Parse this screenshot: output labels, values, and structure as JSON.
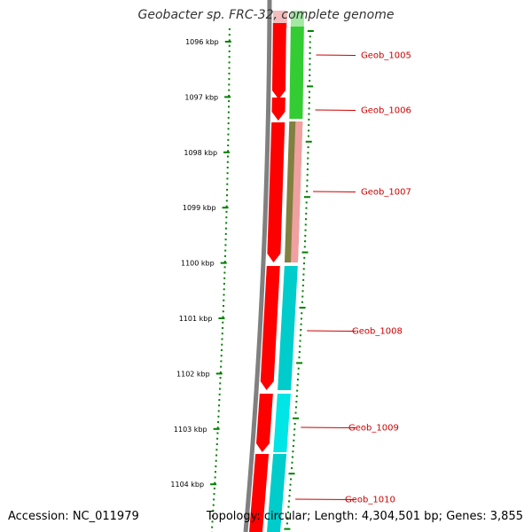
{
  "header": {
    "title": "Geobacter sp. FRC-32, complete genome"
  },
  "ruler": {
    "tick_labels": [
      "1096 kbp",
      "1097 kbp",
      "1098 kbp",
      "1099 kbp",
      "1100 kbp",
      "1101 kbp",
      "1102 kbp",
      "1103 kbp",
      "1104 kbp"
    ]
  },
  "genes": [
    {
      "label": "Geob_1005",
      "color": "#cc0000"
    },
    {
      "label": "Geob_1006",
      "color": "#cc0000"
    },
    {
      "label": "Geob_1007",
      "color": "#cc0000"
    },
    {
      "label": "Geob_1008",
      "color": "#cc0000"
    },
    {
      "label": "Geob_1009",
      "color": "#cc0000"
    },
    {
      "label": "Geob_1010",
      "color": "#cc0000"
    }
  ],
  "footer": {
    "accession": "Accession: NC_011979",
    "topology": "Topology: circular",
    "length": "Length: 4,304,501 bp",
    "genes": "Genes: 3,855"
  },
  "colors": {
    "backbone": "#808080",
    "forward_strand": "#ff0000",
    "feature_green": "#33cc33",
    "feature_olive": "#808040",
    "feature_pink": "#f0a0a0",
    "feature_cyan": "#00cccc",
    "tick_green": "#008000",
    "label_red": "#cc0000"
  }
}
